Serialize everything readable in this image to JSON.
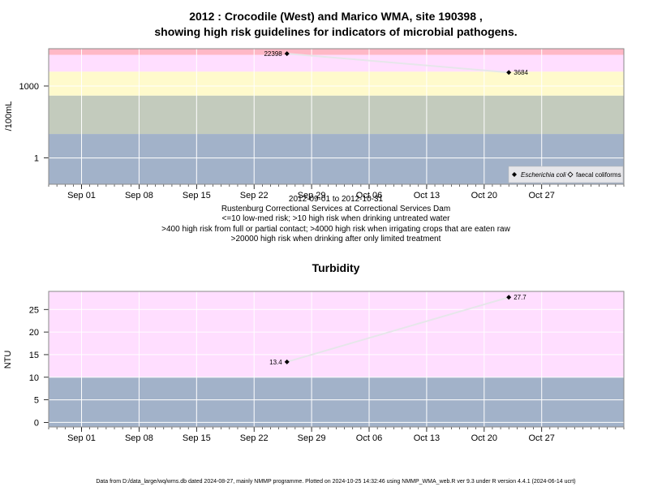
{
  "colors": {
    "red": "#ffb8c6",
    "pink": "#ffdeff",
    "yellow": "#fffacc",
    "green": "#c3cbbd",
    "blue": "#a2b2c9",
    "series_line": "#e6e6ea",
    "point": "#000000"
  },
  "chart_data": [
    {
      "type": "line",
      "title": "2012 : Crocodile (West) and Marico WMA, site 190398 ,",
      "subtitle": "showing high risk guidelines for indicators of microbial pathogens.",
      "ylabel": "/100mL",
      "y_scale": "log",
      "ylim": [
        0.08,
        36000
      ],
      "y_ticks": [
        1,
        1000
      ],
      "y_tick_labels": [
        "1",
        "1000"
      ],
      "xlim": [
        "2012-08-28",
        "2012-11-06"
      ],
      "x_ticks": [
        "2012-09-01",
        "2012-09-08",
        "2012-09-15",
        "2012-09-22",
        "2012-09-29",
        "2012-10-06",
        "2012-10-13",
        "2012-10-20",
        "2012-10-27"
      ],
      "x_tick_labels": [
        "Sep 01",
        "Sep 08",
        "Sep 15",
        "Sep 22",
        "Sep 29",
        "Oct 06",
        "Oct 13",
        "Oct 20",
        "Oct 27"
      ],
      "bands": [
        {
          "from": 0.08,
          "to": 10,
          "color": "blue"
        },
        {
          "from": 10,
          "to": 400,
          "color": "green"
        },
        {
          "from": 400,
          "to": 4000,
          "color": "yellow"
        },
        {
          "from": 4000,
          "to": 20000,
          "color": "pink"
        },
        {
          "from": 20000,
          "to": 36000,
          "color": "red"
        }
      ],
      "series": [
        {
          "name": "Escherichia coli",
          "marker": "filled-diamond",
          "points": [
            {
              "x": "2012-09-26",
              "y": 22398,
              "label": "22398"
            },
            {
              "x": "2012-10-23",
              "y": 3684,
              "label": "3684"
            }
          ]
        },
        {
          "name": "faecal coliforms",
          "marker": "open-diamond",
          "points": []
        }
      ],
      "legend_position": "bottom-right",
      "grid": true,
      "annotations": [
        "2012-09-01 to 2012-10-31",
        "Rustenburg Correctional Services at Correctional Services Dam",
        "<=10 low-med risk; >10 high risk when drinking untreated water",
        ">400 high risk from full or partial contact; >4000 high risk when irrigating crops that are eaten raw",
        ">20000 high risk when drinking after only limited treatment"
      ]
    },
    {
      "type": "line",
      "title": "Turbidity",
      "ylabel": "NTU",
      "y_scale": "linear",
      "ylim": [
        -1,
        29
      ],
      "y_ticks": [
        0,
        5,
        10,
        15,
        20,
        25
      ],
      "y_tick_labels": [
        "0",
        "5",
        "10",
        "15",
        "20",
        "25"
      ],
      "xlim": [
        "2012-08-28",
        "2012-11-06"
      ],
      "x_ticks": [
        "2012-09-01",
        "2012-09-08",
        "2012-09-15",
        "2012-09-22",
        "2012-09-29",
        "2012-10-06",
        "2012-10-13",
        "2012-10-20",
        "2012-10-27"
      ],
      "x_tick_labels": [
        "Sep 01",
        "Sep 08",
        "Sep 15",
        "Sep 22",
        "Sep 29",
        "Oct 06",
        "Oct 13",
        "Oct 20",
        "Oct 27"
      ],
      "bands": [
        {
          "from": -1,
          "to": 10,
          "color": "blue"
        },
        {
          "from": 10,
          "to": 29,
          "color": "pink"
        }
      ],
      "series": [
        {
          "marker": "filled-diamond",
          "points": [
            {
              "x": "2012-09-26",
              "y": 13.4,
              "label": "13.4"
            },
            {
              "x": "2012-10-23",
              "y": 27.7,
              "label": "27.7"
            }
          ]
        }
      ],
      "grid": true
    }
  ],
  "footer": "Data from D:/data_large/wq/wms.db dated 2024-08-27, mainly NMMP programme. Plotted on 2024-10-25 14:32:46 using NMMP_WMA_web.R ver 9.3 under R version 4.4.1 (2024-06-14 ucrt)"
}
